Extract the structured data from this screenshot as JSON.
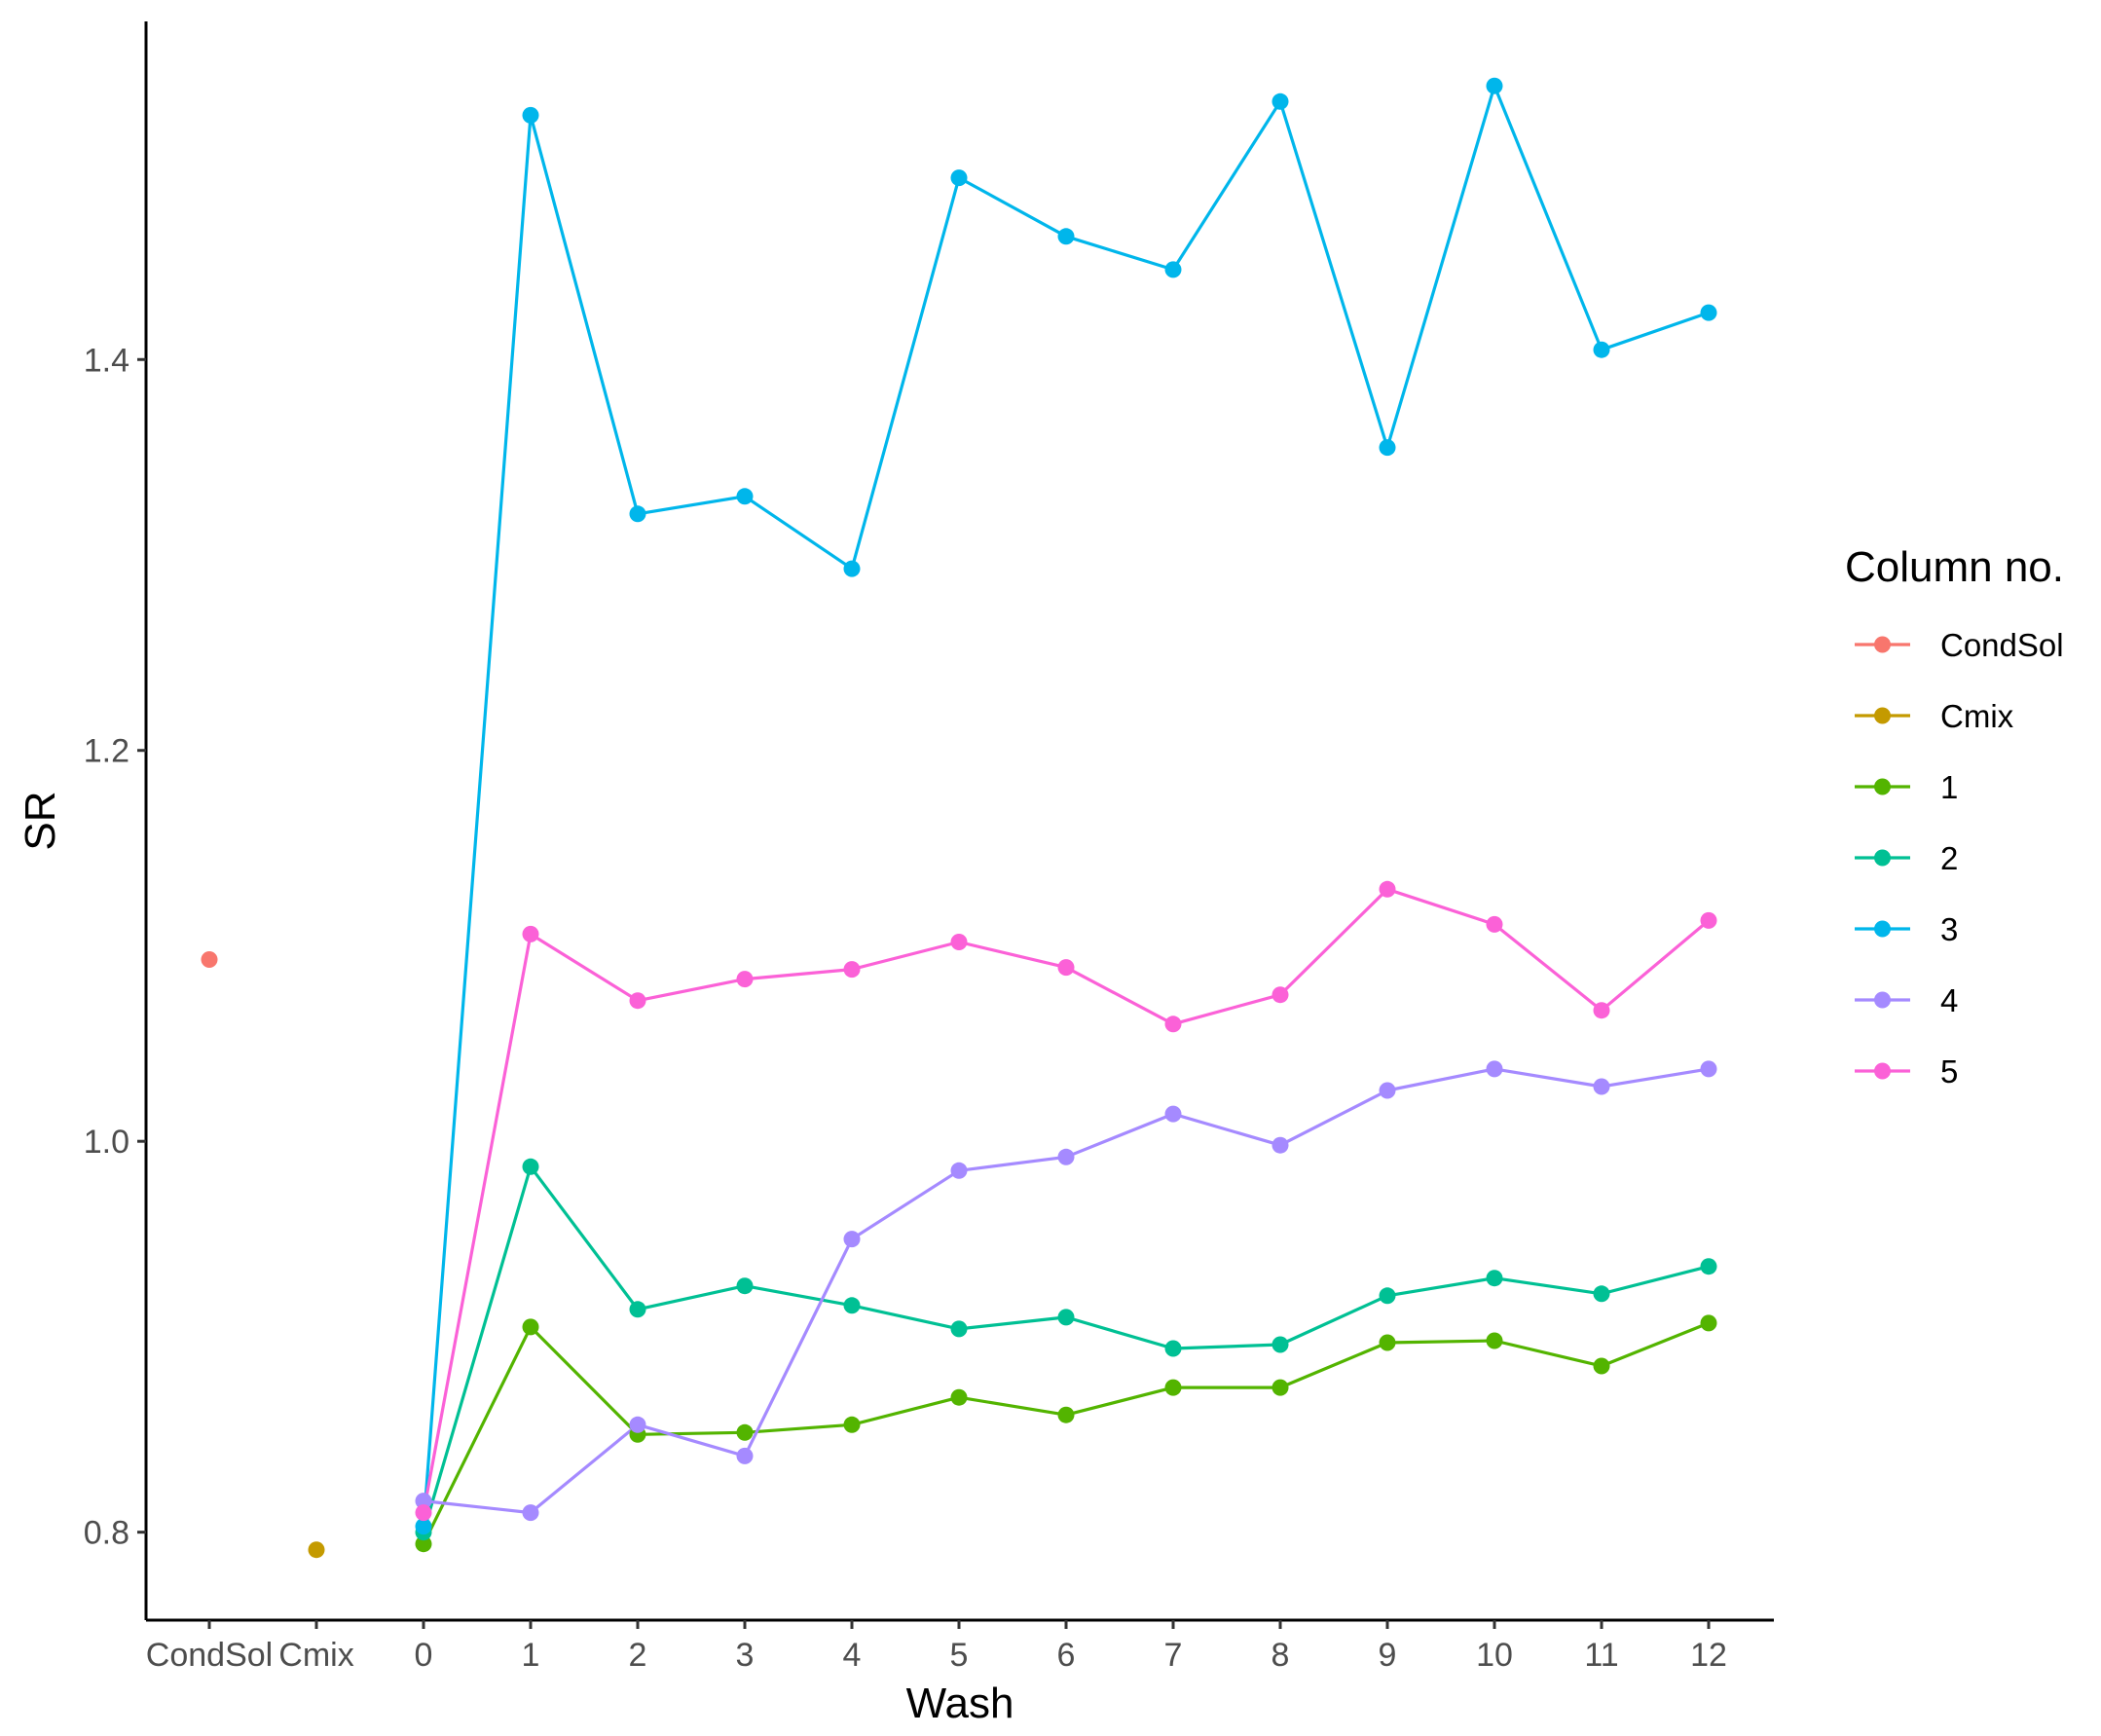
{
  "chart_data": {
    "type": "line",
    "xlabel": "Wash",
    "ylabel": "SR",
    "categories": [
      "CondSol",
      "Cmix",
      "0",
      "1",
      "2",
      "3",
      "4",
      "5",
      "6",
      "7",
      "8",
      "9",
      "10",
      "11",
      "12"
    ],
    "y_ticks": [
      0.8,
      1.0,
      1.2,
      1.4
    ],
    "y_tick_labels": [
      "0.8",
      "1.0",
      "1.2",
      "1.4"
    ],
    "ylim": [
      0.755,
      1.573
    ],
    "grid": false,
    "legend": {
      "title": "Column no.",
      "position": "right"
    },
    "series": [
      {
        "name": "CondSol",
        "color": "#F8766D",
        "x": [
          "CondSol"
        ],
        "values": [
          1.093
        ]
      },
      {
        "name": "Cmix",
        "color": "#C49A00",
        "x": [
          "Cmix"
        ],
        "values": [
          0.791
        ]
      },
      {
        "name": "1",
        "color": "#53B400",
        "x": [
          "0",
          "1",
          "2",
          "3",
          "4",
          "5",
          "6",
          "7",
          "8",
          "9",
          "10",
          "11",
          "12"
        ],
        "values": [
          0.794,
          0.905,
          0.85,
          0.851,
          0.855,
          0.869,
          0.86,
          0.874,
          0.874,
          0.897,
          0.898,
          0.885,
          0.907
        ]
      },
      {
        "name": "2",
        "color": "#00C094",
        "x": [
          "0",
          "1",
          "2",
          "3",
          "4",
          "5",
          "6",
          "7",
          "8",
          "9",
          "10",
          "11",
          "12"
        ],
        "values": [
          0.8,
          0.987,
          0.914,
          0.926,
          0.916,
          0.904,
          0.91,
          0.894,
          0.896,
          0.921,
          0.93,
          0.922,
          0.936
        ]
      },
      {
        "name": "3",
        "color": "#00B6EB",
        "x": [
          "0",
          "1",
          "2",
          "3",
          "4",
          "5",
          "6",
          "7",
          "8",
          "9",
          "10",
          "11",
          "12"
        ],
        "values": [
          0.803,
          1.525,
          1.321,
          1.33,
          1.293,
          1.493,
          1.463,
          1.446,
          1.532,
          1.355,
          1.54,
          1.405,
          1.424
        ]
      },
      {
        "name": "4",
        "color": "#A58AFF",
        "x": [
          "0",
          "1",
          "2",
          "3",
          "4",
          "5",
          "6",
          "7",
          "8",
          "9",
          "10",
          "11",
          "12"
        ],
        "values": [
          0.816,
          0.81,
          0.855,
          0.839,
          0.95,
          0.985,
          0.992,
          1.014,
          0.998,
          1.026,
          1.037,
          1.028,
          1.037
        ]
      },
      {
        "name": "5",
        "color": "#FB61D7",
        "x": [
          "0",
          "1",
          "2",
          "3",
          "4",
          "5",
          "6",
          "7",
          "8",
          "9",
          "10",
          "11",
          "12"
        ],
        "values": [
          0.81,
          1.106,
          1.072,
          1.083,
          1.088,
          1.102,
          1.089,
          1.06,
          1.075,
          1.129,
          1.111,
          1.067,
          1.113
        ]
      }
    ]
  }
}
